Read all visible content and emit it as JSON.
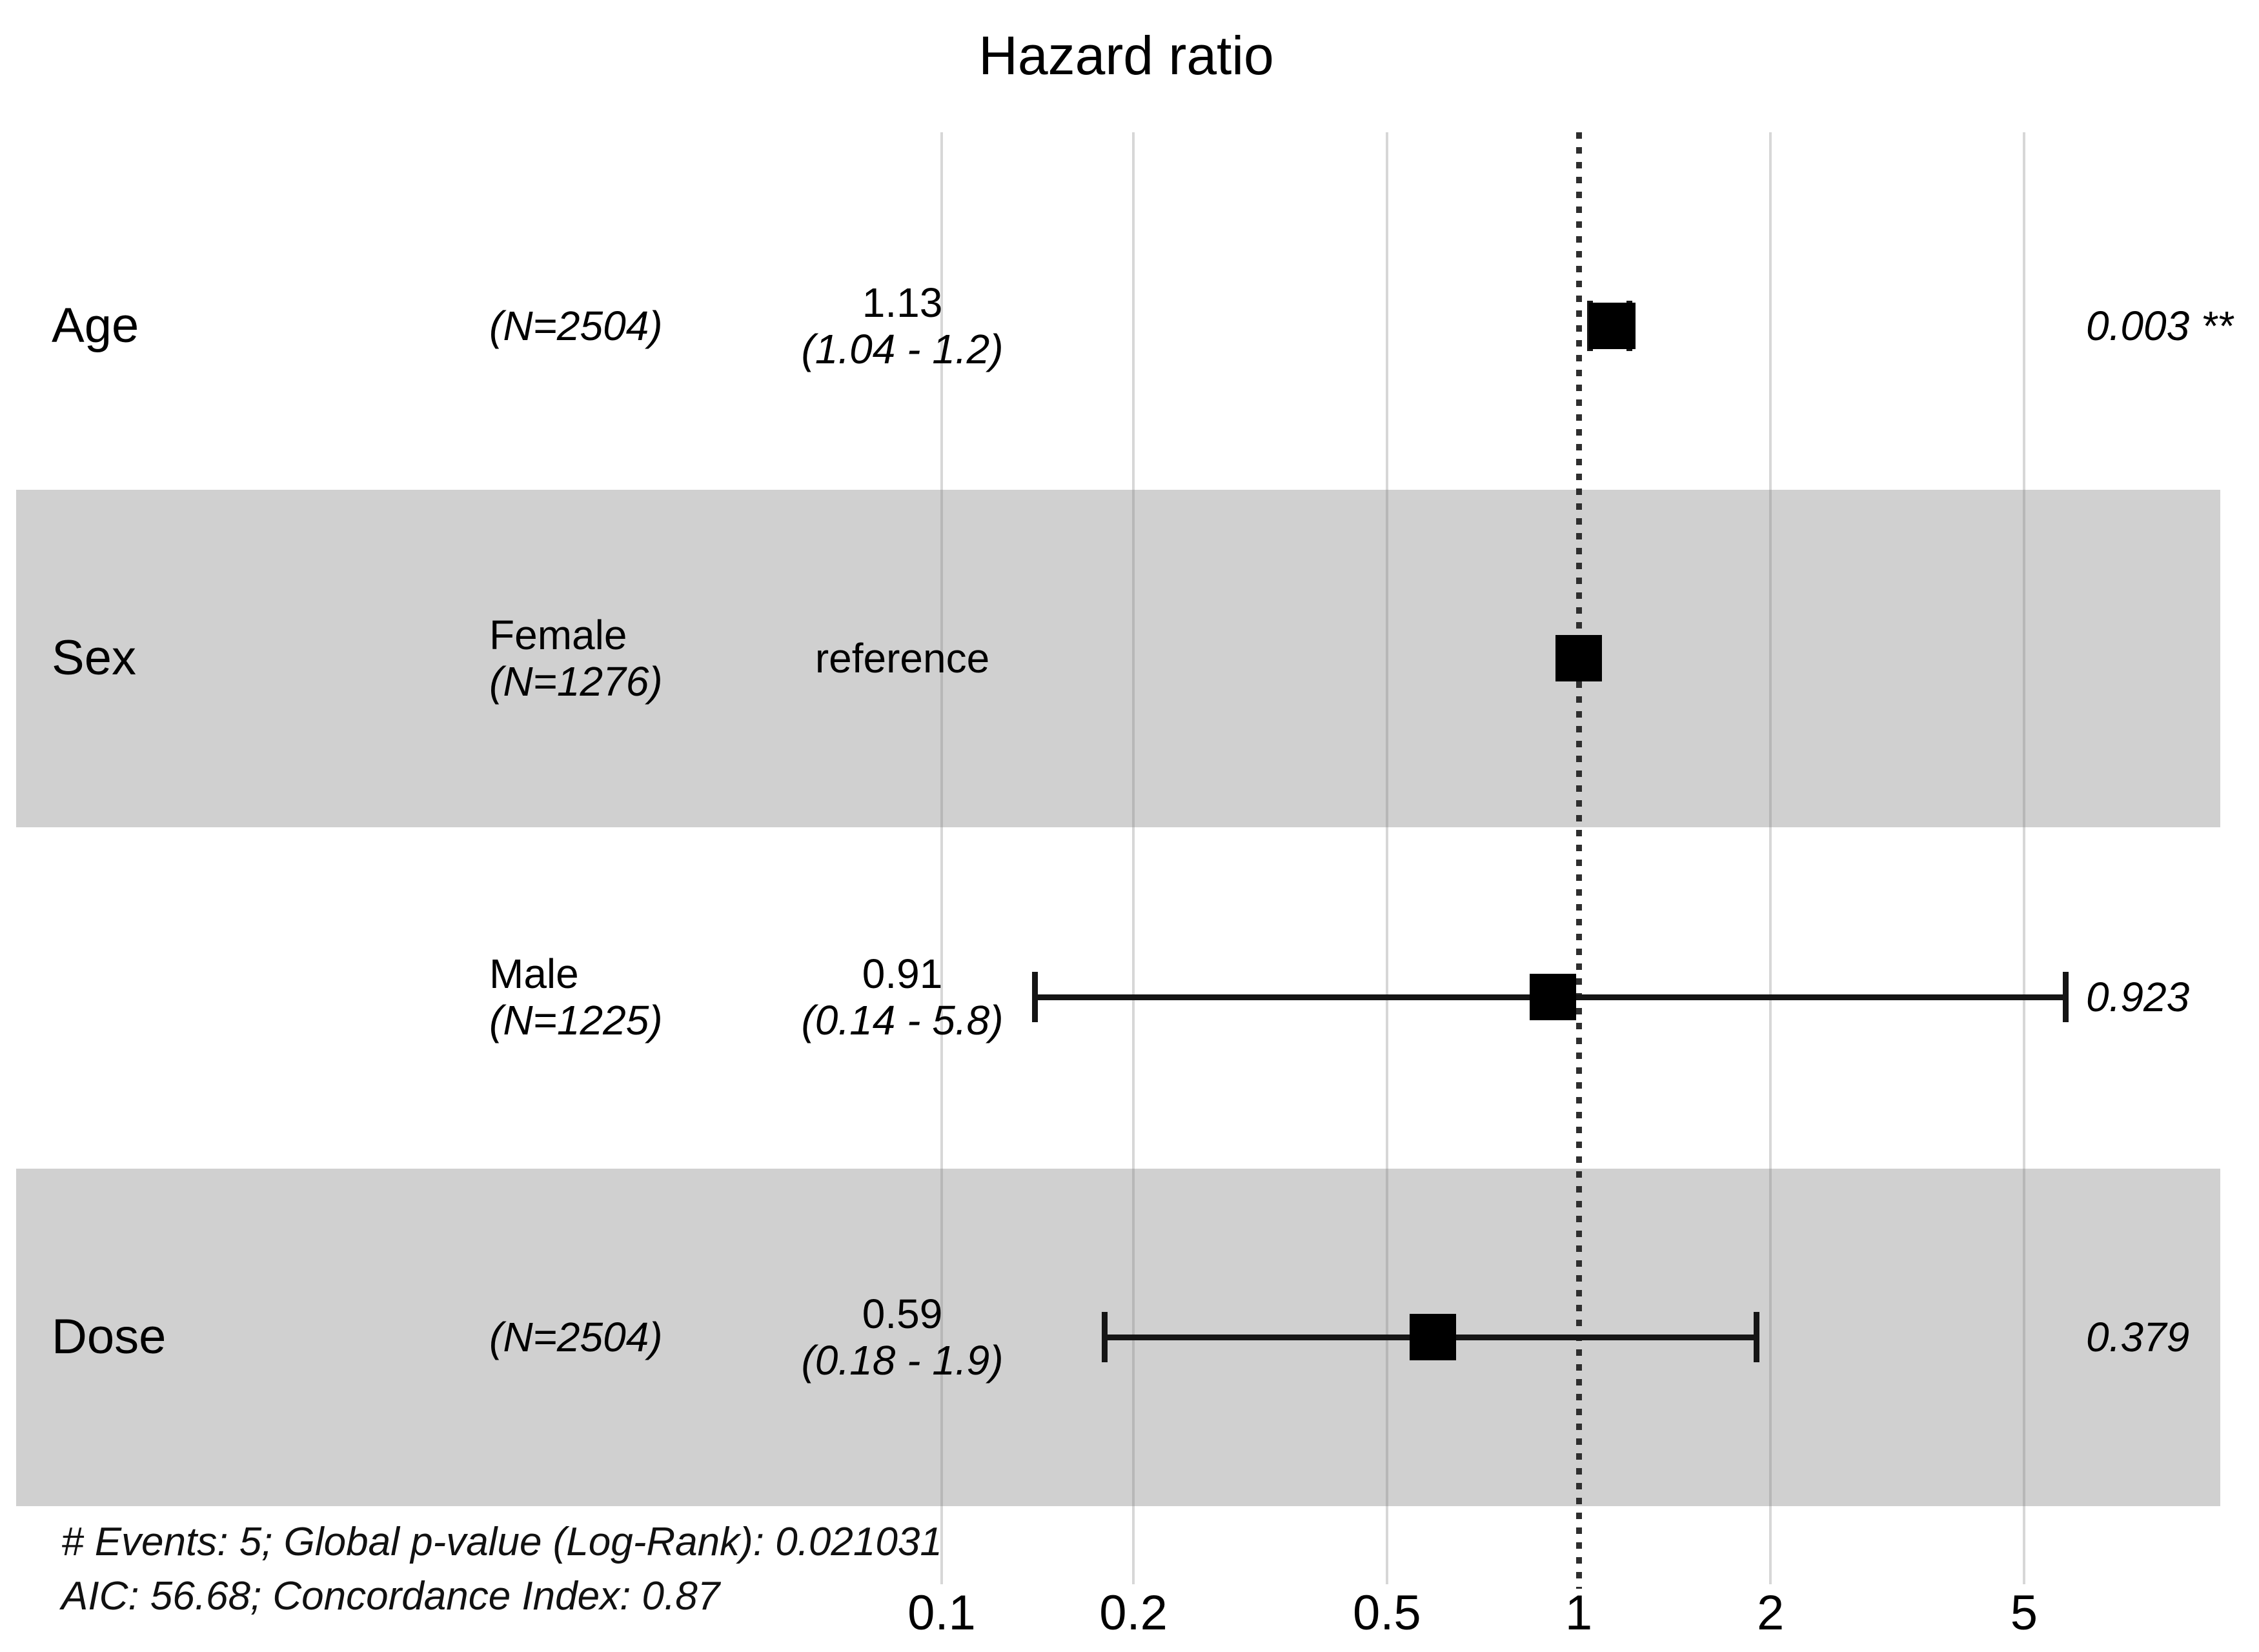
{
  "chart_data": {
    "type": "forest",
    "title": "Hazard ratio",
    "x_scale": "log10",
    "x_ticks": [
      0.1,
      0.2,
      0.5,
      1,
      2,
      5
    ],
    "x_range": [
      0.08,
      9
    ],
    "reference_line": 1,
    "grid": true,
    "shaded_band_color": "#d0d0d0",
    "marker_color": "#000000",
    "rows": [
      {
        "variable": "Age",
        "level": "",
        "n_label": "(N=2504)",
        "estimate_label": "1.13",
        "ci_label": "(1.04 - 1.2)",
        "hr": 1.13,
        "ci_low": 1.04,
        "ci_high": 1.2,
        "p_label": "0.003 **",
        "reference": false,
        "shaded": false
      },
      {
        "variable": "Sex",
        "level": "Female",
        "n_label": "(N=1276)",
        "estimate_label": "reference",
        "ci_label": "",
        "hr": 1.0,
        "ci_low": null,
        "ci_high": null,
        "p_label": "",
        "reference": true,
        "shaded": true
      },
      {
        "variable": "",
        "level": "Male",
        "n_label": "(N=1225)",
        "estimate_label": "0.91",
        "ci_label": "(0.14 - 5.8)",
        "hr": 0.91,
        "ci_low": 0.14,
        "ci_high": 5.8,
        "p_label": "0.923",
        "reference": false,
        "shaded": false
      },
      {
        "variable": "Dose",
        "level": "",
        "n_label": "(N=2504)",
        "estimate_label": "0.59",
        "ci_label": "(0.18 - 1.9)",
        "hr": 0.59,
        "ci_low": 0.18,
        "ci_high": 1.9,
        "p_label": "0.379",
        "reference": false,
        "shaded": true
      }
    ],
    "footnotes": [
      "# Events: 5; Global p-value (Log-Rank): 0.021031",
      "AIC: 56.68; Concordance Index: 0.87"
    ]
  }
}
